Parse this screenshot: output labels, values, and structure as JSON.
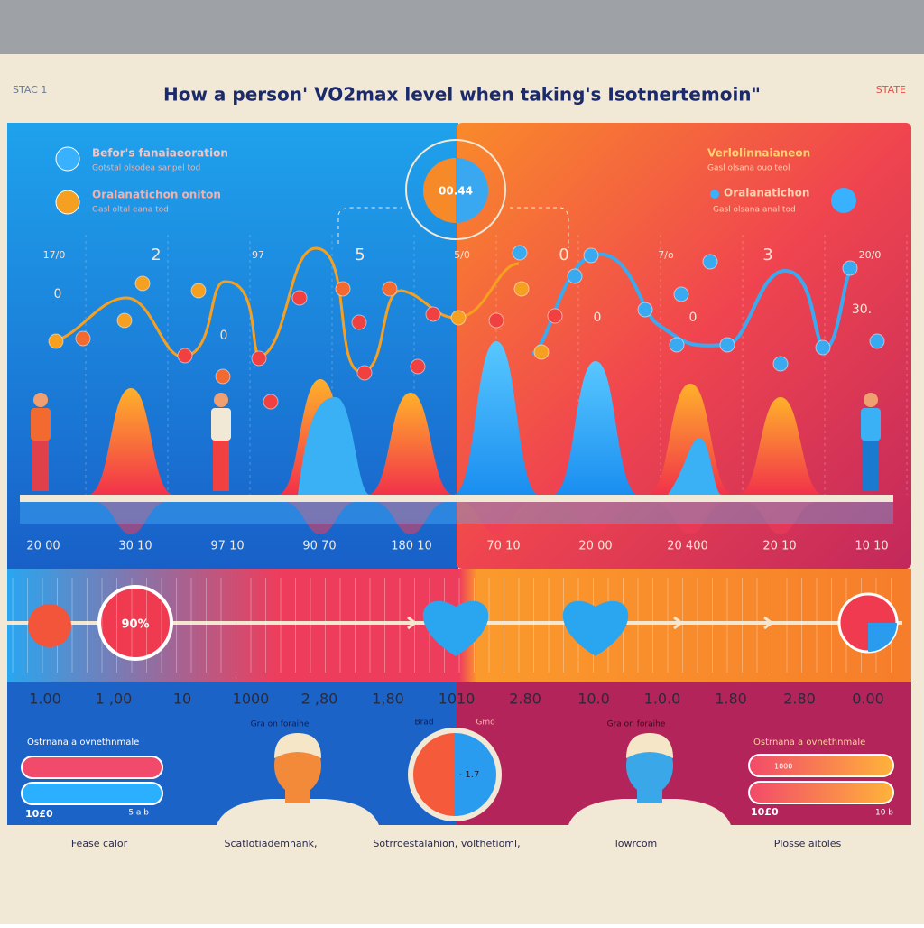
{
  "header": {
    "left_tag": "STAC 1",
    "title": "How a person' VO2max level  when  taking's Isotnertemoin\"",
    "right_tag": "STATE"
  },
  "legend_left": [
    {
      "title": "Befor's fanaiaeoration",
      "subtitle": "Gotstal olsodea sanpel tod"
    },
    {
      "title": "Oralanatichon oniton",
      "subtitle": "Gasl oltal eana tod"
    }
  ],
  "legend_right": [
    {
      "title": "Verlolinnaianeon",
      "subtitle": "Gasl olsana ouo teol"
    },
    {
      "title": "Oralanatichon",
      "subtitle": "Gasl olsana anal tod"
    }
  ],
  "center_badge": "00.44",
  "peak_labels": [
    "17/0",
    "2",
    "97",
    "5",
    "5/0",
    "0",
    "7/o",
    "3",
    "20/0"
  ],
  "side_labels": [
    "0",
    "0",
    "0",
    "0",
    "30."
  ],
  "axis_labels": [
    "20  00",
    "30  10",
    "97  10",
    "90  70",
    "180  10",
    "70  10",
    "20  00",
    "20  400",
    "20  10",
    "10  10"
  ],
  "strip_badge": "90%",
  "scale_labels": [
    "1.00",
    "1 ,00",
    "10",
    "1000",
    "2 ,80",
    "1,80",
    "1010",
    "2.80",
    "10.0",
    "1.0.0",
    "1.80",
    "2.80",
    "0.00"
  ],
  "lower": {
    "left_bar_label": "Ostrnana a ovnethnmale",
    "left_bar_value_left": "10£0",
    "left_bar_value_right": "5 a b",
    "left_face_label": "Gra on foraihe",
    "pie_label_left": "Brad",
    "pie_label_right": "Gmo",
    "pie_value": "- 1.7",
    "right_face_label": "Gra on foraihe",
    "right_bar_label": "Ostrnana a ovnethnmale",
    "right_bar_inner": "1000",
    "right_bar_value_left": "10£0",
    "right_bar_value_right": "10 b"
  },
  "captions": [
    "Fease calor",
    "Scatlotiademnank,",
    "Sotrroestalahion, volthetioml,",
    "lowrcom",
    "Plosse aitoles"
  ]
}
